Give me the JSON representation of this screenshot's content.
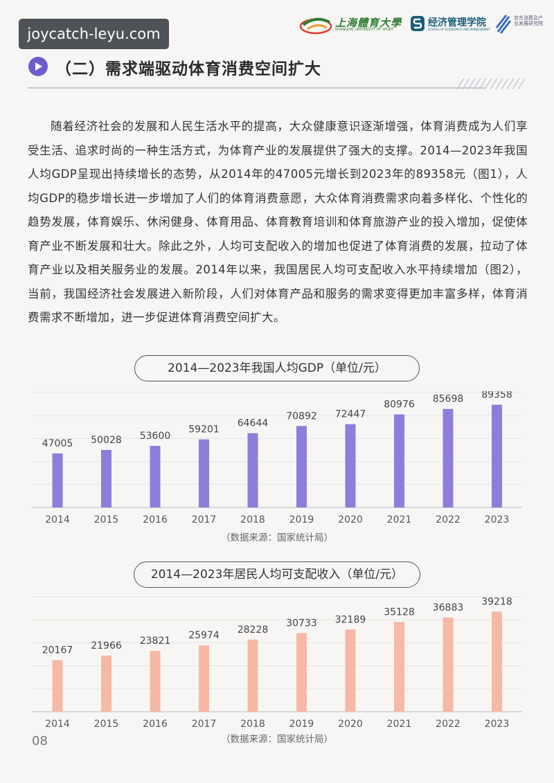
{
  "watermark": "joycatch-leyu.com",
  "header": {
    "logo1_text": "上海體育大學",
    "logo1_sub": "SHANGHAI UNIVERSITY OF SPORT",
    "logo2_text": "经济管理学院",
    "logo2_sub": "SCHOOL OF ECONOMICS AND MANAGEMENT",
    "logo3_text": "京东消费及产业发展研究院"
  },
  "section": {
    "title": "（二）需求端驱动体育消费空间扩大"
  },
  "paragraph": "随着经济社会的发展和人民生活水平的提高，大众健康意识逐渐增强，体育消费成为人们享受生活、追求时尚的一种生活方式，为体育产业的发展提供了强大的支撑。2014—2023年我国人均GDP呈现出持续增长的态势，从2014年的47005元增长到2023年的89358元（图1），人均GDP的稳步增长进一步增加了人们的体育消费意愿，大众体育消费需求向着多样化、个性化的趋势发展，体育娱乐、休闲健身、体育用品、体育教育培训和体育旅游产业的投入增加，促使体育产业不断发展和壮大。除此之外，人均可支配收入的增加也促进了体育消费的发展，拉动了体育产业以及相关服务业的发展。2014年以来，我国居民人均可支配收入水平持续增加（图2），当前，我国经济社会发展进入新阶段，人们对体育产品和服务的需求变得更加丰富多样，体育消费需求不断增加，进一步促进体育消费空间扩大。",
  "page_number": "08",
  "chart_data": [
    {
      "type": "bar",
      "title": "2014—2023年我国人均GDP（单位/元）",
      "categories": [
        "2014",
        "2015",
        "2016",
        "2017",
        "2018",
        "2019",
        "2020",
        "2021",
        "2022",
        "2023"
      ],
      "values": [
        47005,
        50028,
        53600,
        59201,
        64644,
        70892,
        72447,
        80976,
        85698,
        89358
      ],
      "data_labels": [
        "47005",
        "50028",
        "53600",
        "59201",
        "64644",
        "70892",
        "72447",
        "80976",
        "85698",
        "89358"
      ],
      "color": "#8f7ddb",
      "source": "（数据来源：国家统计局）",
      "xlabel": "",
      "ylabel": "",
      "ylim": [
        0,
        100000
      ]
    },
    {
      "type": "bar",
      "title": "2014—2023年居民人均可支配收入（单位/元）",
      "categories": [
        "2014",
        "2015",
        "2016",
        "2017",
        "2018",
        "2019",
        "2020",
        "2021",
        "2022",
        "2023"
      ],
      "values": [
        20167,
        21966,
        23821,
        25974,
        28228,
        30733,
        32189,
        35128,
        36883,
        39218
      ],
      "data_labels": [
        "20167",
        "21966",
        "23821",
        "25974",
        "28228",
        "30733",
        "32189",
        "35128",
        "36883",
        "39218"
      ],
      "color": "#f5b9a5",
      "source": "（数据来源：国家统计局）",
      "xlabel": "",
      "ylabel": "",
      "ylim": [
        0,
        45000
      ]
    }
  ]
}
